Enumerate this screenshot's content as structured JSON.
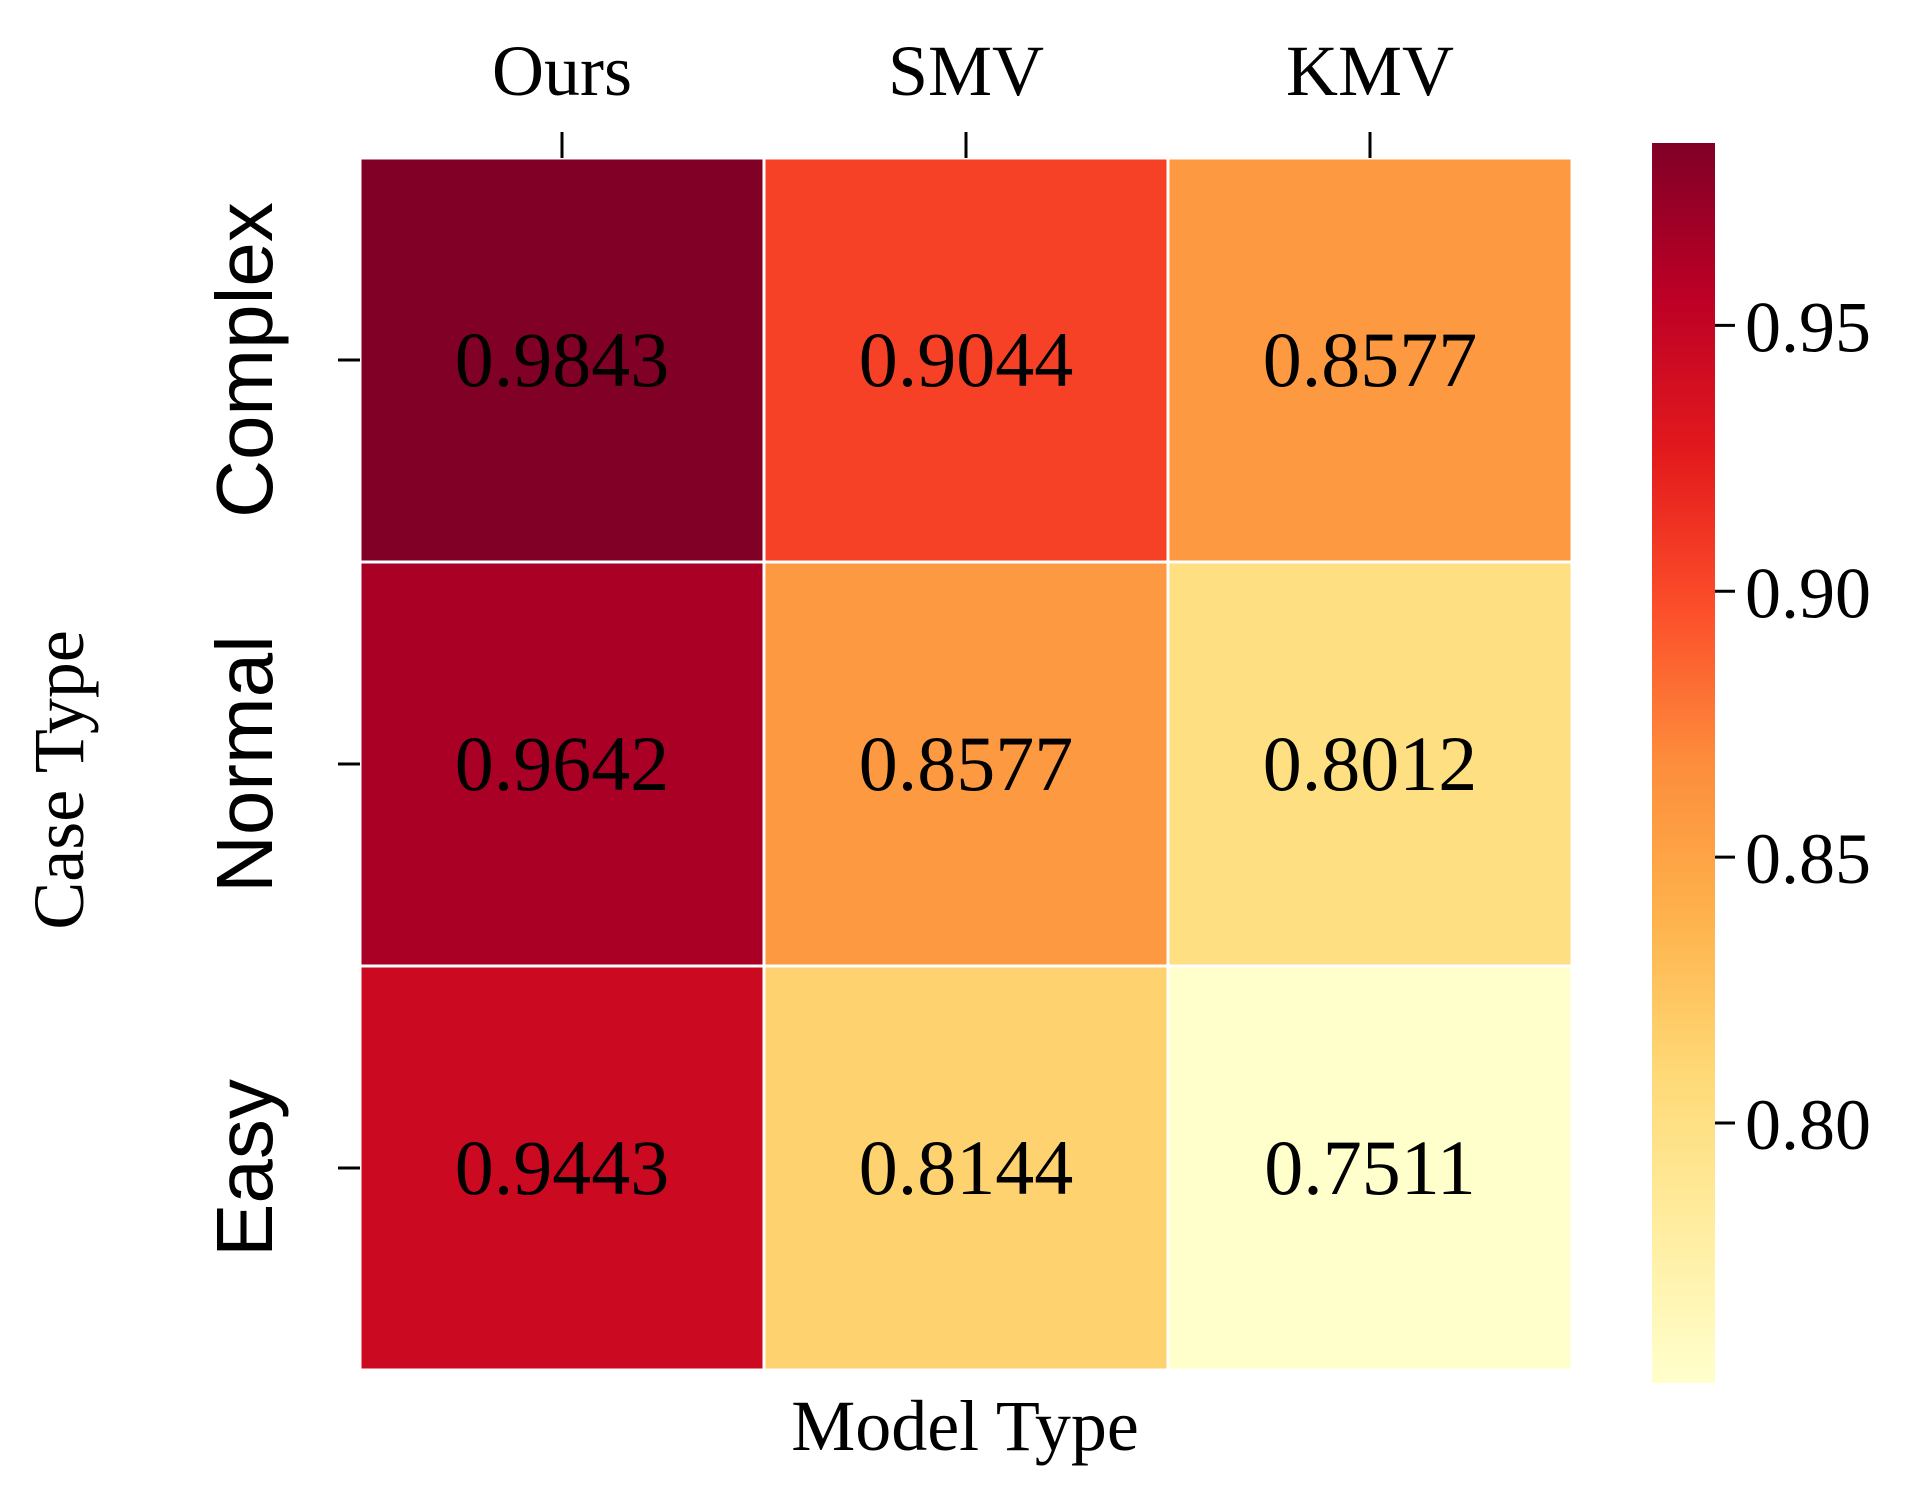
{
  "chart_data": {
    "type": "heatmap",
    "title": "",
    "xlabel": "Model Type",
    "ylabel": "Case Type",
    "x_categories": [
      "Ours",
      "SMV",
      "KMV"
    ],
    "y_categories": [
      "Complex",
      "Normal",
      "Easy"
    ],
    "x_tick_position": "top",
    "values": [
      [
        0.9843,
        0.9044,
        0.8577
      ],
      [
        0.9642,
        0.8577,
        0.8012
      ],
      [
        0.9443,
        0.8144,
        0.7511
      ]
    ],
    "cell_labels": [
      [
        "0.9843",
        "0.9044",
        "0.8577"
      ],
      [
        "0.9642",
        "0.8577",
        "0.8012"
      ],
      [
        "0.9443",
        "0.8144",
        "0.7511"
      ]
    ],
    "colormap": "YlOrRd",
    "colormap_stops": [
      "#ffffcc",
      "#ffeda0",
      "#fed976",
      "#feb24c",
      "#fd8d3c",
      "#fc4e2a",
      "#e31a1c",
      "#bd0026",
      "#800026"
    ],
    "colorbar": {
      "range": [
        0.7511,
        0.9843
      ],
      "ticks": [
        0.8,
        0.85,
        0.9,
        0.95
      ],
      "tick_labels": [
        "0.80",
        "0.85",
        "0.90",
        "0.95"
      ],
      "placement": "right"
    },
    "cell_border_color": "#ffffff"
  }
}
